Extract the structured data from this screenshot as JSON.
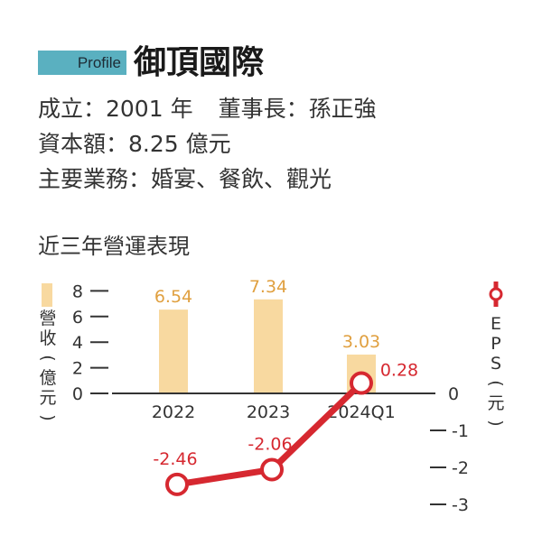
{
  "header": {
    "tag": "Profile",
    "company": "御頂國際"
  },
  "info": {
    "founded": "成立：2001 年",
    "chairman": "董事長：孫正強",
    "capital": "資本額：8.25 億元",
    "business": "主要業務：婚宴、餐飲、觀光"
  },
  "chart_data": {
    "type": "bar+line",
    "title": "近三年營運表現",
    "categories": [
      "2022",
      "2023",
      "2024Q1"
    ],
    "series": [
      {
        "name": "營收(億元)",
        "kind": "bar",
        "axis": "left",
        "color": "#f8d9a0",
        "label_color": "#e0a040",
        "values": [
          6.54,
          7.34,
          3.03
        ],
        "labels": [
          "6.54",
          "7.34",
          "3.03"
        ]
      },
      {
        "name": "EPS(元)",
        "kind": "line",
        "axis": "right",
        "color": "#d62830",
        "values": [
          -2.46,
          -2.06,
          0.28
        ],
        "labels": [
          "-2.46",
          "-2.06",
          "0.28"
        ]
      }
    ],
    "left_axis": {
      "label": "營收(億元)",
      "ticks": [
        0,
        2,
        4,
        6,
        8
      ],
      "tick_labels": [
        "0",
        "2",
        "4",
        "6",
        "8"
      ]
    },
    "right_axis": {
      "label": "EPS(元)",
      "ticks": [
        0,
        -1,
        -2,
        -3
      ],
      "tick_labels": [
        "0",
        "-1",
        "-2",
        "-3"
      ]
    },
    "grid": false
  }
}
